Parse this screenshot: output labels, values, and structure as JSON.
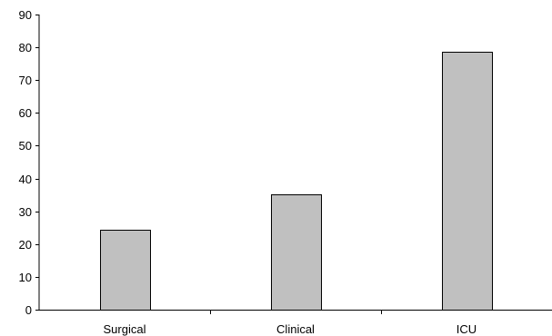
{
  "chart_data": {
    "type": "bar",
    "title": "",
    "xlabel": "",
    "ylabel": "",
    "categories": [
      "Surgical",
      "Clinical",
      "ICU"
    ],
    "values": [
      24.5,
      35.2,
      78.6
    ],
    "ylim": [
      0,
      90
    ],
    "yticks": [
      0,
      10,
      20,
      30,
      40,
      50,
      60,
      70,
      80,
      90
    ],
    "grid": false,
    "legend": "none",
    "bar_color": "#c0c0c0",
    "bar_edge_color": "#000000"
  }
}
